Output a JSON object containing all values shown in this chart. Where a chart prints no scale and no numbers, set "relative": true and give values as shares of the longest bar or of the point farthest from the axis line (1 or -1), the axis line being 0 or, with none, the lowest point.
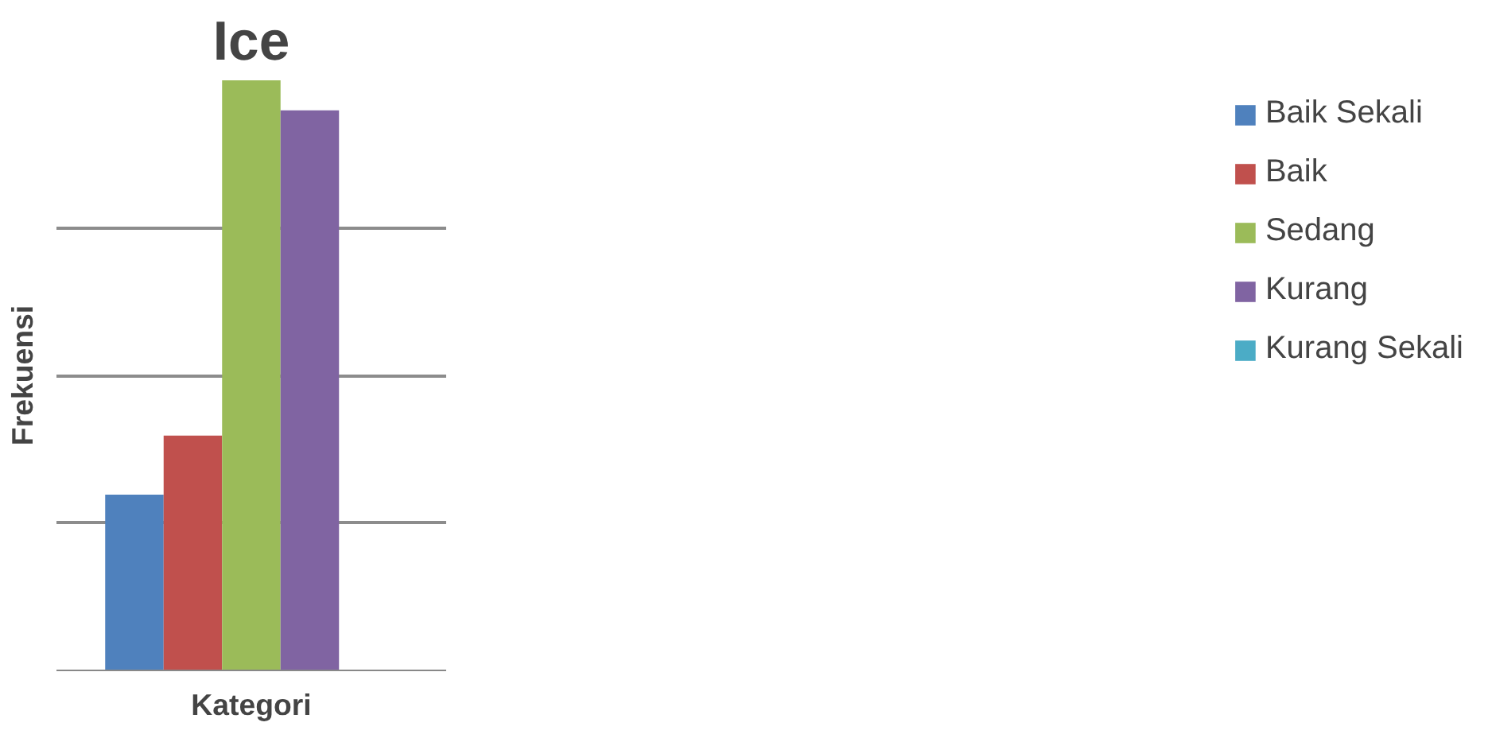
{
  "chart_data": {
    "type": "bar",
    "title": "Ice",
    "xlabel": "Kategori",
    "ylabel": "Frekuensi",
    "relative": true,
    "categories": [
      null
    ],
    "series": [
      {
        "name": "Baik Sekali",
        "color": "#4f81bd",
        "values": [
          0.298
        ]
      },
      {
        "name": "Baik",
        "color": "#c0504d",
        "values": [
          0.398
        ]
      },
      {
        "name": "Sedang",
        "color": "#9bbb59",
        "values": [
          1
        ]
      },
      {
        "name": "Kurang",
        "color": "#8064a2",
        "values": [
          0.949
        ]
      },
      {
        "name": "Kurang Sekali",
        "color": "#4bacc6",
        "values": [
          0
        ]
      }
    ],
    "grid": true,
    "legend": "right"
  }
}
